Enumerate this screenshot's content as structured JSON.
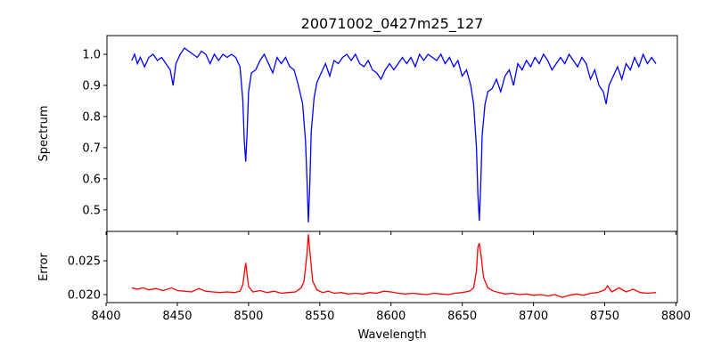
{
  "chart_data": [
    {
      "type": "line",
      "title": "20071002_0427m25_127",
      "xlabel": "",
      "ylabel": "Spectrum",
      "xlim": [
        8400.6,
        8801
      ],
      "ylim": [
        0.431,
        1.06
      ],
      "xticks": [
        8400,
        8450,
        8500,
        8550,
        8600,
        8650,
        8700,
        8750,
        8800
      ],
      "yticks": [
        0.5,
        0.6,
        0.7,
        0.8,
        0.9,
        1.0
      ],
      "ytick_labels": [
        "0.5",
        "0.6",
        "0.7",
        "0.8",
        "0.9",
        "1.0"
      ],
      "grid": false,
      "color": "#0000ff",
      "x": [
        8418,
        8420,
        8422,
        8424,
        8427,
        8430,
        8433,
        8436,
        8439,
        8442,
        8445,
        8447,
        8449,
        8452,
        8455,
        8458,
        8461,
        8464,
        8467,
        8470,
        8473,
        8476,
        8479,
        8482,
        8485,
        8488,
        8491,
        8494,
        8496,
        8497,
        8498,
        8499,
        8500,
        8502,
        8505,
        8508,
        8511,
        8514,
        8517,
        8520,
        8523,
        8526,
        8529,
        8532,
        8535,
        8538,
        8540,
        8541,
        8542,
        8543,
        8544,
        8546,
        8548,
        8551,
        8554,
        8557,
        8560,
        8563,
        8566,
        8569,
        8572,
        8575,
        8578,
        8581,
        8584,
        8587,
        8590,
        8593,
        8596,
        8599,
        8602,
        8605,
        8608,
        8611,
        8614,
        8617,
        8620,
        8623,
        8626,
        8629,
        8632,
        8635,
        8638,
        8641,
        8644,
        8647,
        8650,
        8653,
        8656,
        8658,
        8660,
        8661,
        8662,
        8663,
        8664,
        8666,
        8668,
        8671,
        8674,
        8677,
        8680,
        8683,
        8686,
        8689,
        8692,
        8695,
        8698,
        8701,
        8704,
        8707,
        8710,
        8713,
        8716,
        8719,
        8722,
        8725,
        8728,
        8731,
        8734,
        8737,
        8740,
        8743,
        8746,
        8749,
        8751,
        8753,
        8756,
        8759,
        8762,
        8765,
        8768,
        8771,
        8774,
        8777,
        8780,
        8783,
        8786
      ],
      "y": [
        0.98,
        1.0,
        0.97,
        0.99,
        0.96,
        0.99,
        1.0,
        0.98,
        0.99,
        0.97,
        0.95,
        0.9,
        0.97,
        1.0,
        1.02,
        1.01,
        1.0,
        0.99,
        1.01,
        1.0,
        0.97,
        1.0,
        0.98,
        1.0,
        0.99,
        1.0,
        0.99,
        0.96,
        0.85,
        0.72,
        0.655,
        0.75,
        0.88,
        0.94,
        0.95,
        0.98,
        1.0,
        0.97,
        0.94,
        0.99,
        0.97,
        0.99,
        0.96,
        0.95,
        0.9,
        0.84,
        0.72,
        0.6,
        0.46,
        0.58,
        0.75,
        0.86,
        0.91,
        0.94,
        0.97,
        0.93,
        0.98,
        0.97,
        0.99,
        1.0,
        0.98,
        1.0,
        0.97,
        0.96,
        0.98,
        0.95,
        0.94,
        0.92,
        0.95,
        0.97,
        0.95,
        0.97,
        0.99,
        0.97,
        0.99,
        0.96,
        1.0,
        0.98,
        1.0,
        0.99,
        0.98,
        1.0,
        0.97,
        0.99,
        0.96,
        0.98,
        0.93,
        0.95,
        0.9,
        0.84,
        0.7,
        0.55,
        0.465,
        0.58,
        0.74,
        0.84,
        0.88,
        0.89,
        0.92,
        0.88,
        0.93,
        0.95,
        0.9,
        0.97,
        0.95,
        0.98,
        0.96,
        0.99,
        0.97,
        1.0,
        0.98,
        0.95,
        0.97,
        0.99,
        0.97,
        1.0,
        0.98,
        0.96,
        0.99,
        0.97,
        0.92,
        0.95,
        0.9,
        0.88,
        0.84,
        0.9,
        0.93,
        0.96,
        0.92,
        0.97,
        0.95,
        0.99,
        0.96,
        1.0,
        0.97,
        0.99,
        0.97
      ]
    },
    {
      "type": "line",
      "title": "",
      "xlabel": "Wavelength",
      "ylabel": "Error",
      "xlim": [
        8400.6,
        8801
      ],
      "ylim": [
        0.01882,
        0.02934
      ],
      "xticks": [
        8400,
        8450,
        8500,
        8550,
        8600,
        8650,
        8700,
        8750,
        8800
      ],
      "xtick_labels": [
        "8400",
        "8450",
        "8500",
        "8550",
        "8600",
        "8650",
        "8700",
        "8750",
        "8800"
      ],
      "yticks": [
        0.02,
        0.025
      ],
      "ytick_labels": [
        "0.020",
        "0.025"
      ],
      "grid": false,
      "color": "#ff0000",
      "x": [
        8418,
        8422,
        8426,
        8430,
        8435,
        8440,
        8446,
        8450,
        8455,
        8460,
        8465,
        8470,
        8475,
        8480,
        8485,
        8490,
        8494,
        8496,
        8498,
        8500,
        8503,
        8508,
        8513,
        8518,
        8523,
        8528,
        8533,
        8537,
        8539,
        8541,
        8542,
        8543,
        8545,
        8548,
        8552,
        8556,
        8560,
        8565,
        8570,
        8575,
        8580,
        8585,
        8590,
        8595,
        8600,
        8605,
        8610,
        8615,
        8620,
        8625,
        8630,
        8635,
        8640,
        8645,
        8650,
        8655,
        8658,
        8660,
        8661,
        8662,
        8663,
        8665,
        8668,
        8672,
        8676,
        8680,
        8685,
        8690,
        8695,
        8700,
        8705,
        8710,
        8715,
        8720,
        8725,
        8730,
        8735,
        8740,
        8745,
        8750,
        8752,
        8755,
        8760,
        8765,
        8770,
        8775,
        8780,
        8786
      ],
      "y": [
        0.021,
        0.0208,
        0.021,
        0.0207,
        0.0209,
        0.0206,
        0.021,
        0.0206,
        0.0205,
        0.0204,
        0.0209,
        0.0205,
        0.0204,
        0.0203,
        0.0204,
        0.0203,
        0.0205,
        0.0215,
        0.0247,
        0.0212,
        0.0204,
        0.0206,
        0.0203,
        0.0205,
        0.0202,
        0.0203,
        0.0204,
        0.021,
        0.022,
        0.026,
        0.0289,
        0.0265,
        0.022,
        0.0207,
        0.0203,
        0.0205,
        0.0202,
        0.0203,
        0.0201,
        0.0202,
        0.0201,
        0.0203,
        0.0202,
        0.0205,
        0.0204,
        0.0202,
        0.0201,
        0.0202,
        0.0201,
        0.02,
        0.0202,
        0.0201,
        0.02,
        0.0202,
        0.0203,
        0.0205,
        0.021,
        0.0235,
        0.027,
        0.0276,
        0.0262,
        0.0225,
        0.021,
        0.0205,
        0.0203,
        0.0201,
        0.0202,
        0.02,
        0.0201,
        0.0199,
        0.02,
        0.0198,
        0.02,
        0.0196,
        0.0199,
        0.0201,
        0.0199,
        0.0202,
        0.0203,
        0.0207,
        0.0213,
        0.0204,
        0.021,
        0.0204,
        0.0208,
        0.0203,
        0.0202,
        0.0203
      ]
    }
  ]
}
